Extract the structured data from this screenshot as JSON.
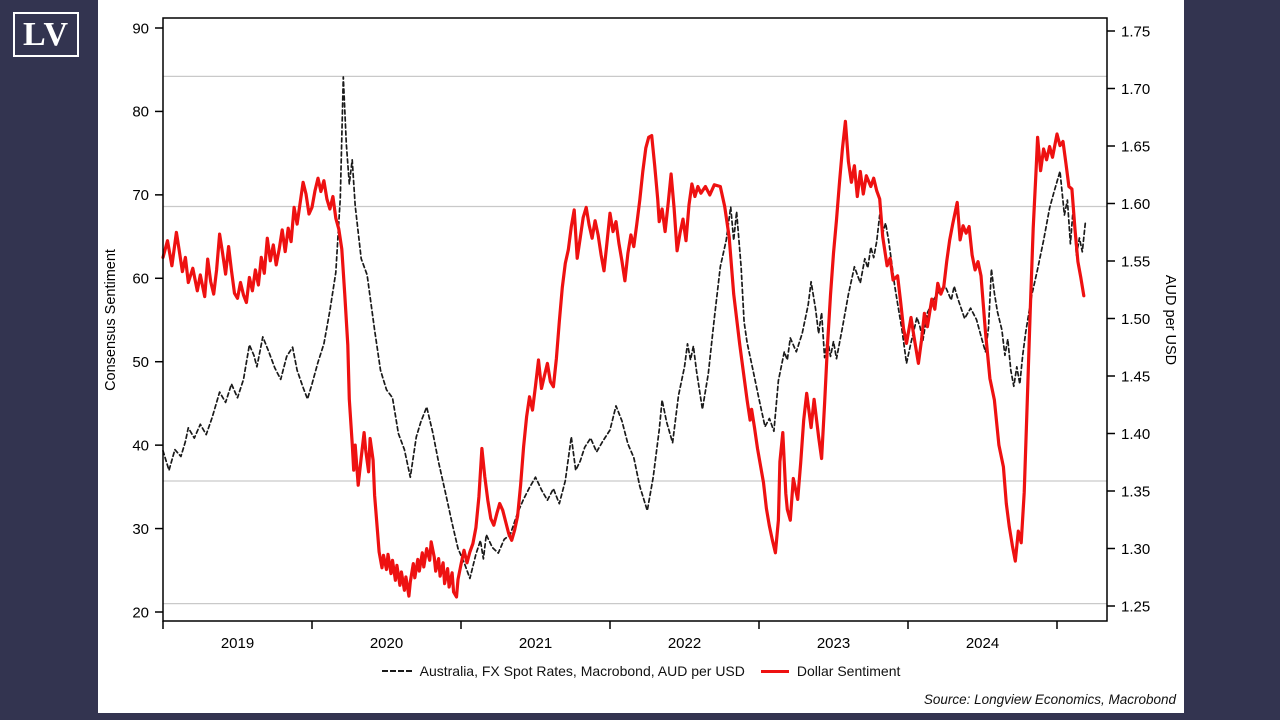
{
  "logo": {
    "text": "LV"
  },
  "source_note": "Source: Longview Economics, Macrobond",
  "colors": {
    "frame_navy": "#333450",
    "card_white": "#ffffff",
    "red_line": "#ee1111",
    "dashed_line": "#1a1a1a",
    "gridline": "#c9c9c9",
    "axis": "#000000"
  },
  "chart_data": {
    "type": "line",
    "title": "",
    "left_axis": {
      "label": "Consensus Sentiment",
      "min": 20,
      "max": 90,
      "ticks": [
        20,
        30,
        40,
        50,
        60,
        70,
        80,
        90
      ]
    },
    "right_axis": {
      "label": "AUD per USD",
      "min": 1.25,
      "max": 1.75,
      "ticks": [
        1.25,
        1.3,
        1.35,
        1.4,
        1.45,
        1.5,
        1.55,
        1.6,
        1.65,
        1.7,
        1.75
      ]
    },
    "x_axis": {
      "tick_years": [
        2019,
        2020,
        2021,
        2022,
        2023,
        2024,
        2025
      ],
      "year_labels": [
        "2019",
        "2020",
        "2021",
        "2022",
        "2023",
        "2024"
      ],
      "domain": [
        2019.0,
        2025.34
      ]
    },
    "gridlines_left_scale": [
      84.2,
      68.6,
      35.7,
      21.0
    ],
    "grid": "horizontal-reference-lines",
    "legend_position": "bottom-center",
    "series": [
      {
        "name": "Australia, FX Spot Rates, Macrobond, AUD per USD",
        "axis": "right",
        "style": "dashed",
        "color": "#1a1a1a",
        "t": [
          2019.0,
          2019.04,
          2019.08,
          2019.12,
          2019.15,
          2019.17,
          2019.21,
          2019.25,
          2019.29,
          2019.33,
          2019.38,
          2019.42,
          2019.46,
          2019.5,
          2019.54,
          2019.58,
          2019.61,
          2019.63,
          2019.67,
          2019.71,
          2019.75,
          2019.79,
          2019.83,
          2019.87,
          2019.9,
          2019.94,
          2019.97,
          2020.0,
          2020.04,
          2020.08,
          2020.12,
          2020.16,
          2020.19,
          2020.21,
          2020.23,
          2020.25,
          2020.27,
          2020.29,
          2020.33,
          2020.37,
          2020.42,
          2020.46,
          2020.5,
          2020.54,
          2020.58,
          2020.62,
          2020.66,
          2020.7,
          2020.73,
          2020.77,
          2020.81,
          2020.85,
          2020.9,
          2020.94,
          2020.98,
          2021.02,
          2021.06,
          2021.1,
          2021.13,
          2021.15,
          2021.17,
          2021.21,
          2021.25,
          2021.29,
          2021.33,
          2021.38,
          2021.42,
          2021.46,
          2021.5,
          2021.54,
          2021.58,
          2021.62,
          2021.66,
          2021.7,
          2021.74,
          2021.77,
          2021.8,
          2021.83,
          2021.87,
          2021.91,
          2021.95,
          2022.0,
          2022.04,
          2022.08,
          2022.12,
          2022.16,
          2022.2,
          2022.25,
          2022.29,
          2022.33,
          2022.35,
          2022.38,
          2022.42,
          2022.46,
          2022.5,
          2022.52,
          2022.54,
          2022.56,
          2022.58,
          2022.62,
          2022.66,
          2022.7,
          2022.74,
          2022.78,
          2022.81,
          2022.83,
          2022.85,
          2022.88,
          2022.9,
          2022.92,
          2022.96,
          2023.0,
          2023.04,
          2023.07,
          2023.1,
          2023.13,
          2023.17,
          2023.19,
          2023.21,
          2023.25,
          2023.29,
          2023.33,
          2023.35,
          2023.38,
          2023.4,
          2023.42,
          2023.44,
          2023.46,
          2023.48,
          2023.5,
          2023.52,
          2023.56,
          2023.6,
          2023.64,
          2023.68,
          2023.71,
          2023.73,
          2023.75,
          2023.77,
          2023.79,
          2023.81,
          2023.83,
          2023.85,
          2023.87,
          2023.89,
          2023.91,
          2023.93,
          2023.96,
          2023.99,
          2024.02,
          2024.04,
          2024.06,
          2024.08,
          2024.1,
          2024.13,
          2024.17,
          2024.21,
          2024.25,
          2024.29,
          2024.31,
          2024.33,
          2024.38,
          2024.42,
          2024.46,
          2024.5,
          2024.52,
          2024.54,
          2024.56,
          2024.58,
          2024.6,
          2024.63,
          2024.65,
          2024.67,
          2024.69,
          2024.71,
          2024.73,
          2024.75,
          2024.77,
          2024.79,
          2024.83,
          2024.87,
          2024.91,
          2024.95,
          2024.98,
          2025.02,
          2025.05,
          2025.07,
          2025.09,
          2025.11,
          2025.13,
          2025.15,
          2025.17,
          2025.19
        ],
        "v": [
          1.385,
          1.368,
          1.386,
          1.38,
          1.393,
          1.405,
          1.396,
          1.408,
          1.399,
          1.414,
          1.436,
          1.427,
          1.443,
          1.431,
          1.447,
          1.477,
          1.468,
          1.458,
          1.484,
          1.471,
          1.457,
          1.447,
          1.467,
          1.475,
          1.455,
          1.44,
          1.43,
          1.443,
          1.462,
          1.478,
          1.507,
          1.54,
          1.605,
          1.71,
          1.652,
          1.617,
          1.638,
          1.598,
          1.552,
          1.538,
          1.49,
          1.455,
          1.438,
          1.431,
          1.4,
          1.386,
          1.362,
          1.397,
          1.41,
          1.423,
          1.401,
          1.375,
          1.346,
          1.322,
          1.3,
          1.288,
          1.274,
          1.295,
          1.307,
          1.291,
          1.312,
          1.301,
          1.296,
          1.308,
          1.312,
          1.331,
          1.343,
          1.353,
          1.362,
          1.351,
          1.342,
          1.352,
          1.339,
          1.359,
          1.397,
          1.368,
          1.376,
          1.388,
          1.396,
          1.384,
          1.393,
          1.403,
          1.424,
          1.411,
          1.391,
          1.379,
          1.354,
          1.333,
          1.362,
          1.403,
          1.429,
          1.41,
          1.392,
          1.433,
          1.458,
          1.478,
          1.464,
          1.476,
          1.455,
          1.421,
          1.452,
          1.5,
          1.545,
          1.568,
          1.597,
          1.568,
          1.593,
          1.545,
          1.497,
          1.479,
          1.455,
          1.43,
          1.406,
          1.413,
          1.402,
          1.446,
          1.471,
          1.464,
          1.483,
          1.471,
          1.487,
          1.512,
          1.532,
          1.508,
          1.487,
          1.505,
          1.466,
          1.482,
          1.467,
          1.48,
          1.465,
          1.492,
          1.521,
          1.545,
          1.531,
          1.552,
          1.544,
          1.562,
          1.553,
          1.567,
          1.59,
          1.574,
          1.583,
          1.568,
          1.549,
          1.529,
          1.513,
          1.49,
          1.461,
          1.479,
          1.49,
          1.501,
          1.493,
          1.481,
          1.505,
          1.516,
          1.524,
          1.528,
          1.516,
          1.528,
          1.519,
          1.5,
          1.509,
          1.499,
          1.48,
          1.471,
          1.492,
          1.543,
          1.522,
          1.506,
          1.49,
          1.468,
          1.482,
          1.455,
          1.441,
          1.458,
          1.443,
          1.468,
          1.488,
          1.52,
          1.543,
          1.568,
          1.596,
          1.61,
          1.628,
          1.59,
          1.603,
          1.565,
          1.598,
          1.555,
          1.57,
          1.558,
          1.583
        ]
      },
      {
        "name": "Dollar Sentiment",
        "axis": "left",
        "style": "solid",
        "color": "#ee1111",
        "t": [
          2019.0,
          2019.03,
          2019.06,
          2019.09,
          2019.11,
          2019.13,
          2019.15,
          2019.17,
          2019.2,
          2019.23,
          2019.25,
          2019.28,
          2019.3,
          2019.32,
          2019.34,
          2019.36,
          2019.38,
          2019.4,
          2019.42,
          2019.44,
          2019.46,
          2019.48,
          2019.5,
          2019.52,
          2019.54,
          2019.56,
          2019.58,
          2019.6,
          2019.62,
          2019.64,
          2019.66,
          2019.68,
          2019.7,
          2019.72,
          2019.74,
          2019.76,
          2019.78,
          2019.8,
          2019.82,
          2019.84,
          2019.86,
          2019.88,
          2019.9,
          2019.92,
          2019.94,
          2019.96,
          2019.98,
          2020.0,
          2020.02,
          2020.04,
          2020.06,
          2020.08,
          2020.1,
          2020.12,
          2020.14,
          2020.16,
          2020.18,
          2020.2,
          2020.22,
          2020.24,
          2020.25,
          2020.27,
          2020.28,
          2020.29,
          2020.31,
          2020.33,
          2020.35,
          2020.36,
          2020.38,
          2020.39,
          2020.41,
          2020.42,
          2020.44,
          2020.45,
          2020.47,
          2020.48,
          2020.5,
          2020.51,
          2020.53,
          2020.54,
          2020.56,
          2020.57,
          2020.59,
          2020.6,
          2020.62,
          2020.63,
          2020.65,
          2020.66,
          2020.68,
          2020.69,
          2020.71,
          2020.72,
          2020.74,
          2020.75,
          2020.77,
          2020.79,
          2020.8,
          2020.82,
          2020.83,
          2020.85,
          2020.86,
          2020.88,
          2020.89,
          2020.91,
          2020.92,
          2020.94,
          2020.95,
          2020.97,
          2020.98,
          2021.0,
          2021.02,
          2021.04,
          2021.06,
          2021.08,
          2021.1,
          2021.12,
          2021.14,
          2021.16,
          2021.18,
          2021.2,
          2021.22,
          2021.24,
          2021.26,
          2021.28,
          2021.3,
          2021.32,
          2021.34,
          2021.36,
          2021.38,
          2021.4,
          2021.42,
          2021.44,
          2021.46,
          2021.48,
          2021.5,
          2021.52,
          2021.54,
          2021.56,
          2021.58,
          2021.6,
          2021.62,
          2021.64,
          2021.66,
          2021.68,
          2021.7,
          2021.72,
          2021.74,
          2021.76,
          2021.78,
          2021.8,
          2021.82,
          2021.84,
          2021.86,
          2021.88,
          2021.9,
          2021.92,
          2021.94,
          2021.96,
          2021.98,
          2022.0,
          2022.02,
          2022.04,
          2022.06,
          2022.08,
          2022.1,
          2022.12,
          2022.14,
          2022.16,
          2022.18,
          2022.2,
          2022.22,
          2022.24,
          2022.26,
          2022.28,
          2022.3,
          2022.32,
          2022.33,
          2022.35,
          2022.37,
          2022.39,
          2022.41,
          2022.43,
          2022.45,
          2022.47,
          2022.49,
          2022.51,
          2022.53,
          2022.55,
          2022.57,
          2022.59,
          2022.61,
          2022.64,
          2022.67,
          2022.7,
          2022.74,
          2022.77,
          2022.8,
          2022.83,
          2022.87,
          2022.92,
          2022.94,
          2022.95,
          2022.97,
          2022.99,
          2023.03,
          2023.05,
          2023.07,
          2023.09,
          2023.11,
          2023.13,
          2023.14,
          2023.16,
          2023.18,
          2023.19,
          2023.21,
          2023.23,
          2023.26,
          2023.28,
          2023.3,
          2023.32,
          2023.35,
          2023.37,
          2023.4,
          2023.42,
          2023.44,
          2023.46,
          2023.48,
          2023.5,
          2023.52,
          2023.54,
          2023.56,
          2023.58,
          2023.6,
          2023.62,
          2023.64,
          2023.66,
          2023.68,
          2023.7,
          2023.72,
          2023.75,
          2023.77,
          2023.79,
          2023.81,
          2023.83,
          2023.86,
          2023.88,
          2023.9,
          2023.93,
          2023.95,
          2023.97,
          2023.99,
          2024.02,
          2024.04,
          2024.07,
          2024.09,
          2024.11,
          2024.13,
          2024.16,
          2024.18,
          2024.2,
          2024.22,
          2024.24,
          2024.26,
          2024.28,
          2024.3,
          2024.33,
          2024.35,
          2024.37,
          2024.39,
          2024.41,
          2024.43,
          2024.45,
          2024.47,
          2024.49,
          2024.52,
          2024.55,
          2024.58,
          2024.61,
          2024.64,
          2024.66,
          2024.68,
          2024.7,
          2024.72,
          2024.74,
          2024.76,
          2024.78,
          2024.8,
          2024.82,
          2024.84,
          2024.86,
          2024.87,
          2024.89,
          2024.91,
          2024.93,
          2024.95,
          2024.97,
          2025.0,
          2025.02,
          2025.04,
          2025.06,
          2025.08,
          2025.1,
          2025.12,
          2025.14,
          2025.16,
          2025.18
        ],
        "v": [
          62.5,
          64.5,
          61.5,
          65.5,
          63.2,
          60.8,
          62.5,
          59.5,
          61.2,
          58.5,
          60.4,
          57.8,
          62.3,
          59.6,
          58.1,
          61.0,
          65.3,
          63.0,
          60.5,
          63.8,
          60.9,
          58.2,
          57.6,
          59.5,
          58.0,
          57.1,
          60.1,
          58.5,
          61.0,
          59.2,
          62.5,
          60.6,
          64.8,
          62.1,
          64.0,
          61.6,
          63.5,
          65.8,
          63.2,
          66.0,
          64.4,
          68.5,
          66.5,
          69.0,
          71.5,
          70.1,
          67.7,
          68.5,
          70.5,
          72.0,
          70.4,
          71.7,
          69.5,
          68.3,
          69.8,
          67.2,
          65.9,
          63.5,
          58.0,
          52.0,
          45.5,
          40.2,
          37.0,
          40.0,
          35.2,
          38.5,
          41.5,
          39.5,
          36.8,
          40.8,
          38.2,
          34.0,
          29.5,
          27.2,
          25.3,
          26.8,
          25.1,
          26.9,
          24.6,
          26.2,
          23.8,
          25.6,
          23.2,
          24.8,
          22.6,
          24.2,
          21.9,
          23.6,
          25.8,
          24.1,
          26.3,
          24.9,
          27.1,
          25.4,
          27.6,
          26.2,
          28.4,
          26.6,
          24.9,
          26.4,
          24.3,
          25.9,
          23.4,
          25.2,
          23.0,
          24.7,
          22.4,
          21.8,
          23.9,
          25.7,
          27.4,
          25.9,
          27.2,
          28.2,
          30.1,
          33.8,
          39.6,
          36.2,
          33.4,
          31.2,
          30.4,
          31.8,
          33.0,
          32.2,
          30.8,
          29.4,
          28.6,
          29.8,
          31.5,
          35.2,
          39.8,
          43.4,
          45.8,
          44.2,
          47.1,
          50.2,
          46.8,
          48.3,
          49.8,
          47.6,
          47.0,
          50.4,
          54.8,
          58.9,
          61.8,
          63.4,
          66.2,
          68.2,
          62.4,
          64.8,
          67.3,
          68.5,
          66.4,
          64.8,
          66.9,
          65.2,
          62.8,
          60.9,
          64.3,
          67.8,
          65.6,
          66.8,
          64.2,
          62.1,
          59.7,
          63.0,
          65.2,
          63.8,
          66.5,
          69.4,
          72.8,
          75.6,
          76.9,
          77.1,
          73.5,
          69.5,
          66.8,
          68.3,
          65.6,
          68.9,
          72.5,
          68.4,
          63.3,
          65.4,
          67.1,
          64.5,
          68.8,
          71.3,
          69.8,
          71.0,
          70.2,
          71.0,
          70.0,
          71.2,
          71.0,
          68.6,
          64.9,
          58.1,
          52.2,
          45.4,
          43.0,
          44.3,
          42.1,
          39.6,
          35.5,
          32.4,
          30.3,
          28.6,
          27.1,
          31.0,
          38.0,
          41.5,
          34.2,
          32.3,
          31.0,
          36.0,
          33.5,
          37.9,
          43.0,
          46.2,
          42.1,
          45.5,
          41.0,
          38.4,
          45.0,
          52.0,
          58.0,
          63.0,
          67.0,
          71.5,
          75.5,
          78.8,
          74.0,
          71.5,
          73.5,
          69.8,
          72.8,
          70.1,
          72.3,
          71.0,
          72.0,
          70.5,
          69.5,
          65.0,
          61.5,
          62.4,
          59.8,
          60.3,
          57.2,
          54.0,
          52.2,
          55.3,
          53.0,
          49.8,
          52.5,
          55.8,
          54.2,
          57.5,
          56.3,
          59.4,
          58.1,
          59.0,
          62.0,
          64.6,
          66.5,
          69.1,
          64.6,
          66.3,
          65.4,
          66.2,
          62.8,
          61.0,
          62.0,
          60.3,
          53.5,
          48.0,
          45.4,
          40.0,
          37.4,
          33.0,
          30.2,
          28.0,
          26.1,
          29.7,
          28.3,
          34.3,
          45.0,
          56.0,
          66.0,
          73.0,
          76.9,
          72.9,
          75.5,
          74.2,
          75.8,
          74.5,
          77.3,
          75.9,
          76.4,
          73.8,
          71.0,
          70.7,
          66.0,
          62.0,
          60.1,
          57.9
        ]
      }
    ]
  }
}
